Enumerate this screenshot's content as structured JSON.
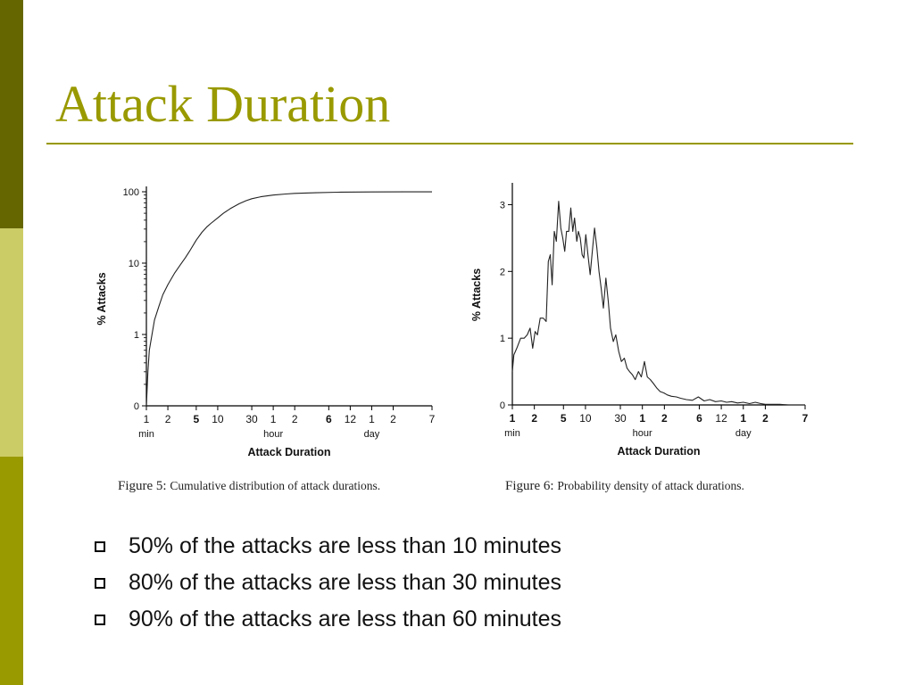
{
  "colors": {
    "accent": "#999900",
    "sidebar_top": "#666600",
    "sidebar_mid": "#cccc66",
    "sidebar_bottom": "#999900"
  },
  "slide": {
    "title": "Attack Duration",
    "bullets": [
      "50% of the attacks are less than 10 minutes",
      "80% of the attacks are less than 30 minutes",
      "90% of the attacks are less than 60 minutes"
    ],
    "bullet_icon": "hollow-square-icon"
  },
  "captions": [
    {
      "number": "Figure 5:",
      "text": "Cumulative distribution of attack durations."
    },
    {
      "number": "Figure 6:",
      "text": "Probability density of attack durations."
    }
  ],
  "chart_data": [
    {
      "type": "line",
      "title": "",
      "xlabel": "Attack Duration",
      "ylabel": "% Attacks",
      "x_scale": "log",
      "x_ticks": [
        {
          "label": "1",
          "minutes": 1,
          "bold": false
        },
        {
          "label": "2",
          "minutes": 2,
          "bold": false
        },
        {
          "label": "5",
          "minutes": 5,
          "bold": true
        },
        {
          "label": "10",
          "minutes": 10,
          "bold": false
        },
        {
          "label": "30",
          "minutes": 30,
          "bold": false
        },
        {
          "label": "1",
          "minutes": 60,
          "bold": false
        },
        {
          "label": "2",
          "minutes": 120,
          "bold": false
        },
        {
          "label": "6",
          "minutes": 360,
          "bold": true
        },
        {
          "label": "12",
          "minutes": 720,
          "bold": false
        },
        {
          "label": "1",
          "minutes": 1440,
          "bold": false
        },
        {
          "label": "2",
          "minutes": 2880,
          "bold": false
        },
        {
          "label": "7",
          "minutes": 10080,
          "bold": false
        }
      ],
      "x_unit_labels": [
        {
          "label": "min",
          "minutes": 1
        },
        {
          "label": "hour",
          "minutes": 60
        },
        {
          "label": "day",
          "minutes": 1440
        }
      ],
      "y_scale": "log",
      "y_ticks": [
        {
          "label": "0",
          "level": 0
        },
        {
          "label": "1",
          "level": 1
        },
        {
          "label": "10",
          "level": 2
        },
        {
          "label": "100",
          "level": 3
        }
      ],
      "series": [
        {
          "x_minutes": [
            1,
            1.05,
            1.1,
            1.2,
            1.3,
            1.5,
            1.7,
            2,
            2.5,
            3,
            3.5,
            4,
            5,
            6,
            7,
            8,
            10,
            12,
            15,
            20,
            25,
            30,
            40,
            60,
            90,
            120,
            240,
            480,
            1440,
            4320,
            10080
          ],
          "y_percent": [
            0.03,
            0.3,
            0.6,
            1,
            1.6,
            2.5,
            3.6,
            5,
            7.3,
            9.5,
            11.8,
            14.5,
            21,
            27,
            32,
            36,
            43,
            50,
            58,
            68,
            75,
            80,
            85,
            90,
            93,
            95,
            97,
            98.5,
            99.3,
            99.6,
            99.7
          ]
        }
      ]
    },
    {
      "type": "line",
      "title": "",
      "xlabel": "Attack Duration",
      "ylabel": "% Attacks",
      "x_scale": "log",
      "x_ticks": [
        {
          "label": "1",
          "minutes": 1,
          "bold": true
        },
        {
          "label": "2",
          "minutes": 2,
          "bold": true
        },
        {
          "label": "5",
          "minutes": 5,
          "bold": true
        },
        {
          "label": "10",
          "minutes": 10,
          "bold": false
        },
        {
          "label": "30",
          "minutes": 30,
          "bold": false
        },
        {
          "label": "1",
          "minutes": 60,
          "bold": true
        },
        {
          "label": "2",
          "minutes": 120,
          "bold": true
        },
        {
          "label": "6",
          "minutes": 360,
          "bold": true
        },
        {
          "label": "12",
          "minutes": 720,
          "bold": false
        },
        {
          "label": "1",
          "minutes": 1440,
          "bold": true
        },
        {
          "label": "2",
          "minutes": 2880,
          "bold": true
        },
        {
          "label": "7",
          "minutes": 10080,
          "bold": true
        }
      ],
      "x_unit_labels": [
        {
          "label": "min",
          "minutes": 1
        },
        {
          "label": "hour",
          "minutes": 60
        },
        {
          "label": "day",
          "minutes": 1440
        }
      ],
      "y_scale": "linear",
      "ylim": [
        0,
        3.3
      ],
      "y_ticks": [
        {
          "label": "0",
          "value": 0
        },
        {
          "label": "1",
          "value": 1
        },
        {
          "label": "2",
          "value": 2
        },
        {
          "label": "3",
          "value": 3
        }
      ],
      "series": [
        {
          "x_minutes": [
            1,
            1.05,
            1.15,
            1.3,
            1.45,
            1.6,
            1.75,
            1.9,
            2.05,
            2.2,
            2.4,
            2.65,
            2.9,
            3.1,
            3.3,
            3.5,
            3.75,
            4.0,
            4.3,
            4.6,
            4.9,
            5.2,
            5.5,
            5.9,
            6.3,
            6.7,
            7.1,
            7.6,
            8.0,
            8.5,
            9.0,
            9.5,
            10.1,
            10.8,
            11.6,
            12.4,
            13.3,
            14.3,
            15.3,
            16.4,
            17.6,
            19,
            20.5,
            22,
            24,
            26,
            28.5,
            31,
            34,
            37,
            40,
            44,
            48,
            53,
            58,
            64,
            70,
            77,
            85,
            95,
            105,
            118,
            132,
            150,
            175,
            200,
            240,
            290,
            350,
            420,
            500,
            600,
            720,
            850,
            1000,
            1200,
            1440,
            1750,
            2100,
            2500,
            2880,
            3500,
            4500,
            6000,
            8000,
            10080
          ],
          "y_percent": [
            0.5,
            0.75,
            0.85,
            1.0,
            1.0,
            1.05,
            1.15,
            0.85,
            1.1,
            1.05,
            1.3,
            1.3,
            1.25,
            2.15,
            2.25,
            1.8,
            2.6,
            2.45,
            3.05,
            2.65,
            2.5,
            2.3,
            2.6,
            2.6,
            2.95,
            2.6,
            2.8,
            2.45,
            2.6,
            2.5,
            2.25,
            2.2,
            2.55,
            2.25,
            1.95,
            2.3,
            2.65,
            2.35,
            2.0,
            1.75,
            1.45,
            1.9,
            1.55,
            1.15,
            0.95,
            1.05,
            0.8,
            0.65,
            0.7,
            0.55,
            0.5,
            0.45,
            0.38,
            0.5,
            0.42,
            0.65,
            0.42,
            0.38,
            0.32,
            0.25,
            0.2,
            0.18,
            0.15,
            0.13,
            0.12,
            0.1,
            0.08,
            0.07,
            0.12,
            0.06,
            0.08,
            0.05,
            0.06,
            0.04,
            0.05,
            0.03,
            0.04,
            0.02,
            0.04,
            0.02,
            0.01,
            0.01,
            0.01,
            0.0,
            0.0,
            0.0
          ]
        }
      ]
    }
  ]
}
